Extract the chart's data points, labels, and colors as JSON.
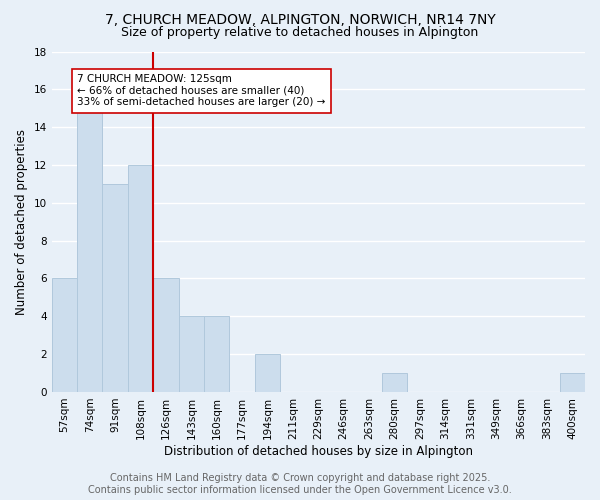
{
  "title": "7, CHURCH MEADOW, ALPINGTON, NORWICH, NR14 7NY",
  "subtitle": "Size of property relative to detached houses in Alpington",
  "xlabel": "Distribution of detached houses by size in Alpington",
  "ylabel": "Number of detached properties",
  "categories": [
    "57sqm",
    "74sqm",
    "91sqm",
    "108sqm",
    "126sqm",
    "143sqm",
    "160sqm",
    "177sqm",
    "194sqm",
    "211sqm",
    "229sqm",
    "246sqm",
    "263sqm",
    "280sqm",
    "297sqm",
    "314sqm",
    "331sqm",
    "349sqm",
    "366sqm",
    "383sqm",
    "400sqm"
  ],
  "values": [
    6,
    15,
    11,
    12,
    6,
    4,
    4,
    0,
    2,
    0,
    0,
    0,
    0,
    1,
    0,
    0,
    0,
    0,
    0,
    0,
    1
  ],
  "bar_color": "#ccdded",
  "bar_edge_color": "#b0c8dc",
  "vline_index": 4,
  "vline_color": "#cc0000",
  "annotation_line1": "7 CHURCH MEADOW: 125sqm",
  "annotation_line2": "← 66% of detached houses are smaller (40)",
  "annotation_line3": "33% of semi-detached houses are larger (20) →",
  "annotation_box_facecolor": "#ffffff",
  "annotation_box_edgecolor": "#cc0000",
  "ylim": [
    0,
    18
  ],
  "yticks": [
    0,
    2,
    4,
    6,
    8,
    10,
    12,
    14,
    16,
    18
  ],
  "bg_color": "#e8f0f8",
  "grid_color": "#ffffff",
  "title_fontsize": 10,
  "subtitle_fontsize": 9,
  "xlabel_fontsize": 8.5,
  "ylabel_fontsize": 8.5,
  "tick_fontsize": 7.5,
  "annotation_fontsize": 7.5,
  "footer_fontsize": 7,
  "footer_color": "#666666",
  "footer_line1": "Contains HM Land Registry data © Crown copyright and database right 2025.",
  "footer_line2": "Contains public sector information licensed under the Open Government Licence v3.0."
}
